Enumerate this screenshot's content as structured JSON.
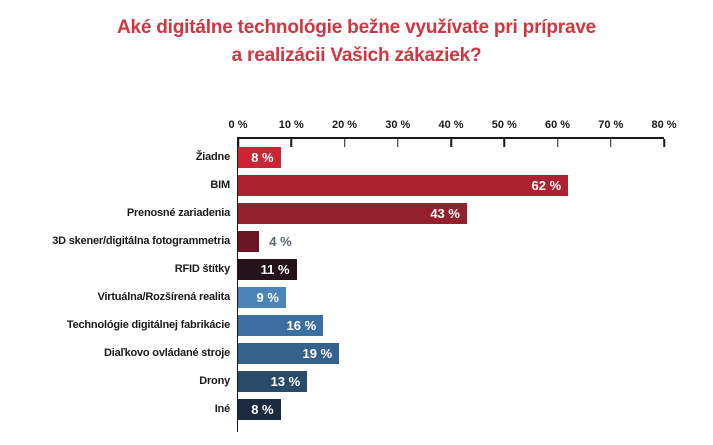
{
  "title": {
    "lines": [
      "Aké digitálne technológie bežne využívate pri príprave",
      "a realizácii Vašich zákaziek?"
    ],
    "color": "#d23440"
  },
  "chart_data": {
    "type": "bar",
    "orientation": "horizontal",
    "title": "Aké digitálne technológie bežne využívate pri príprave a realizácii Vašich zákaziek?",
    "categories": [
      "Žiadne",
      "BIM",
      "Prenosné zariadenia",
      "3D skener/digitálna fotogrammetria",
      "RFID štítky",
      "Virtuálna/Rozšírená realita",
      "Technológie digitálnej fabrikácie",
      "Diaľkovo ovládané stroje",
      "Drony",
      "Iné"
    ],
    "values": [
      8,
      62,
      43,
      4,
      11,
      9,
      16,
      19,
      13,
      8
    ],
    "value_labels": [
      "8 %",
      "62 %",
      "43 %",
      "4 %",
      "11 %",
      "9 %",
      "16 %",
      "19 %",
      "13 %",
      "8 %"
    ],
    "bar_colors": [
      "#c92534",
      "#ad2130",
      "#93202c",
      "#6a1521",
      "#26121a",
      "#4c84ba",
      "#3c6fa1",
      "#34618d",
      "#2a4a6a",
      "#1a2b40"
    ],
    "xlabel": "",
    "ylabel": "",
    "xlim": [
      0,
      80
    ],
    "x_ticks": [
      "0 %",
      "10 %",
      "20 %",
      "30 %",
      "40 %",
      "50 %",
      "60 %",
      "70 %",
      "80 %"
    ],
    "axis_position": "top",
    "grid": false,
    "legend": false,
    "value_label_inside_color": "#ffffff",
    "value_label_outside_color": "#5d6874",
    "axis_color": "#1a1a1a"
  }
}
